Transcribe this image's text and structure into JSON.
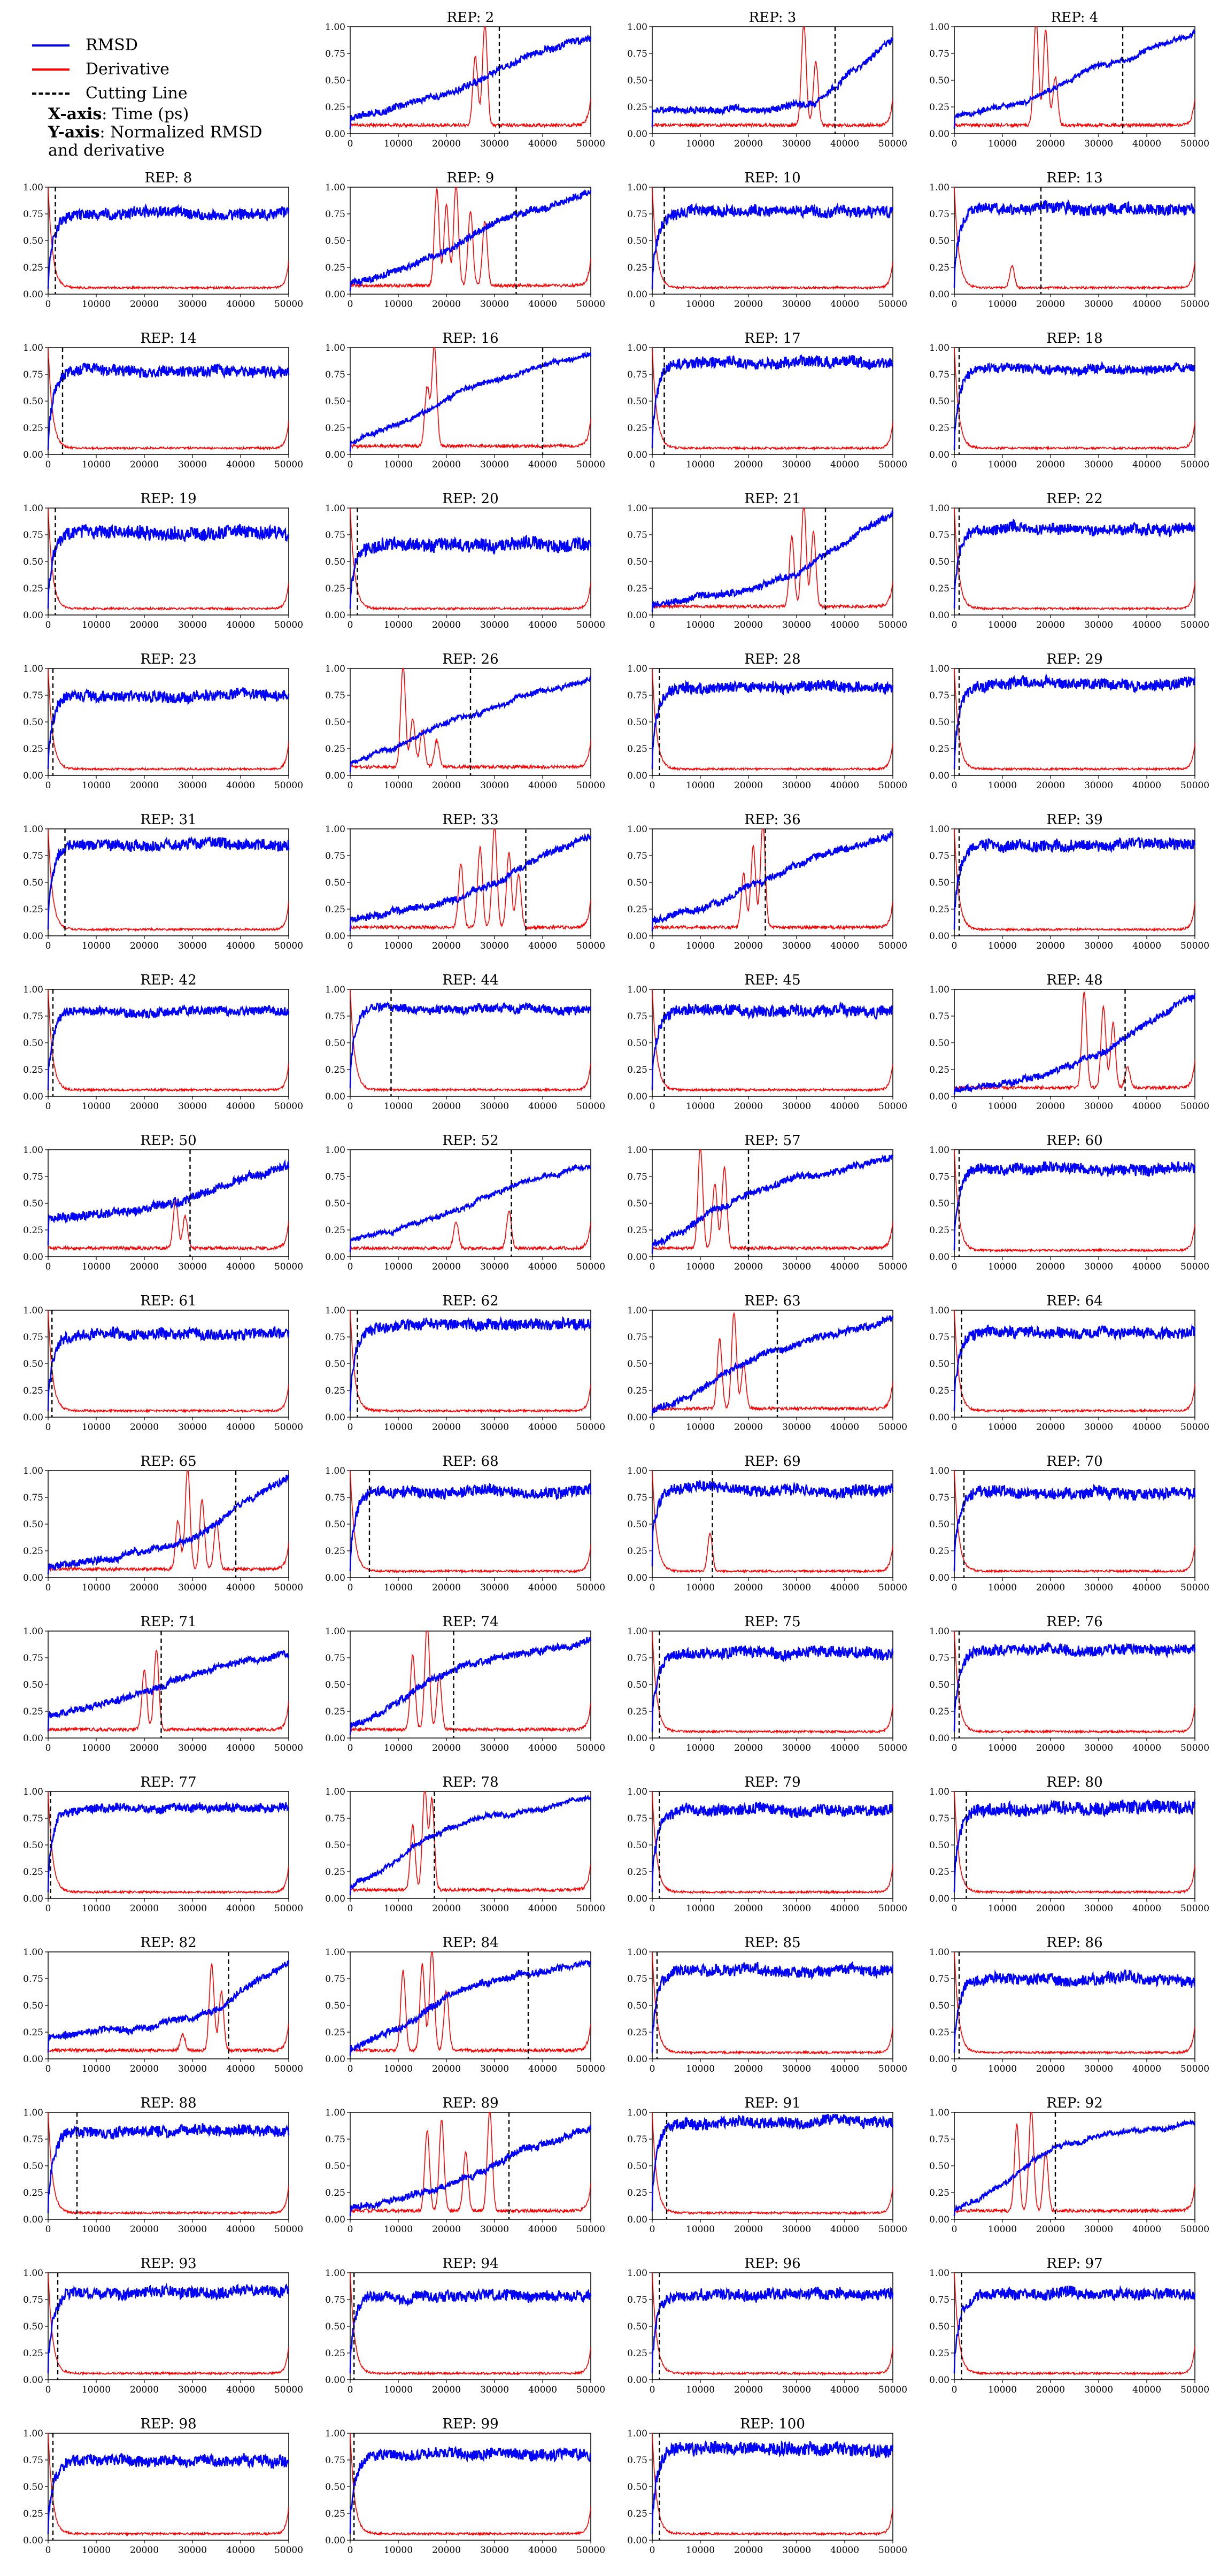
{
  "legend": {
    "rmsd_label": "RMSD",
    "derivative_label": "Derivative",
    "cutting_label": "Cutting Line",
    "xaxis_key": "X-axis",
    "xaxis_text": ": Time (ps)",
    "yaxis_key": "Y-axis",
    "yaxis_text": ": Normalized RMSD",
    "yaxis_text2": "and derivative"
  },
  "colors": {
    "rmsd": "#0000ff",
    "derivative": "#ff0000",
    "cutting": "#000000"
  },
  "chart_data": {
    "type": "line",
    "title_prefix": "REP: ",
    "xlim": [
      0,
      50000
    ],
    "ylim": [
      0,
      1.0
    ],
    "xticks": [
      0,
      10000,
      20000,
      30000,
      40000,
      50000
    ],
    "yticks": [
      "0.00",
      "0.25",
      "0.50",
      "0.75",
      "1.00"
    ],
    "series_names": [
      "RMSD",
      "Derivative",
      "Cutting Line"
    ],
    "panels": [
      {
        "rep": 2,
        "cut": 31000,
        "shape": "sig",
        "start": 0.15,
        "mid": 0.55,
        "end": 0.92,
        "trans": 25000,
        "noise": 0.03,
        "peaks": [
          [
            26000,
            0.65
          ],
          [
            28000,
            0.95
          ]
        ]
      },
      {
        "rep": 3,
        "cut": 38000,
        "shape": "sig",
        "start": 0.2,
        "mid": 0.3,
        "end": 0.9,
        "trans": 33000,
        "noise": 0.03,
        "peaks": [
          [
            31500,
            0.95
          ],
          [
            34000,
            0.6
          ]
        ]
      },
      {
        "rep": 4,
        "cut": 35000,
        "shape": "sig",
        "start": 0.15,
        "mid": 0.45,
        "end": 0.95,
        "trans": 19000,
        "noise": 0.02,
        "peaks": [
          [
            17000,
            0.98
          ],
          [
            19000,
            0.9
          ],
          [
            21000,
            0.45
          ]
        ]
      },
      {
        "rep": 8,
        "cut": 1500,
        "shape": "fast",
        "start": 0.15,
        "end": 0.75,
        "noise": 0.05
      },
      {
        "rep": 9,
        "cut": 34500,
        "shape": "sig",
        "start": 0.1,
        "mid": 0.55,
        "end": 0.95,
        "trans": 22000,
        "noise": 0.03,
        "peaks": [
          [
            18000,
            0.9
          ],
          [
            20000,
            0.75
          ],
          [
            22000,
            0.95
          ],
          [
            25000,
            0.7
          ],
          [
            28000,
            0.6
          ]
        ]
      },
      {
        "rep": 10,
        "cut": 2500,
        "shape": "fast",
        "start": 0.15,
        "end": 0.78,
        "noise": 0.05
      },
      {
        "rep": 13,
        "cut": 18000,
        "shape": "fast",
        "start": 0.2,
        "end": 0.8,
        "noise": 0.05,
        "peaks": [
          [
            12000,
            0.2
          ]
        ]
      },
      {
        "rep": 14,
        "cut": 3000,
        "shape": "fast",
        "start": 0.15,
        "end": 0.78,
        "noise": 0.05
      },
      {
        "rep": 16,
        "cut": 40000,
        "shape": "sig",
        "start": 0.1,
        "mid": 0.55,
        "end": 0.93,
        "trans": 18000,
        "noise": 0.02,
        "peaks": [
          [
            16000,
            0.55
          ],
          [
            17500,
            0.95
          ]
        ]
      },
      {
        "rep": 17,
        "cut": 2500,
        "shape": "fast",
        "start": 0.2,
        "end": 0.85,
        "noise": 0.05
      },
      {
        "rep": 18,
        "cut": 1000,
        "shape": "fast",
        "start": 0.15,
        "end": 0.8,
        "noise": 0.04
      },
      {
        "rep": 19,
        "cut": 1500,
        "shape": "fast",
        "start": 0.2,
        "end": 0.78,
        "noise": 0.06
      },
      {
        "rep": 20,
        "cut": 1500,
        "shape": "fast",
        "start": 0.2,
        "end": 0.65,
        "noise": 0.06
      },
      {
        "rep": 21,
        "cut": 36000,
        "shape": "sig",
        "start": 0.1,
        "mid": 0.45,
        "end": 0.93,
        "trans": 30000,
        "noise": 0.03,
        "peaks": [
          [
            29000,
            0.65
          ],
          [
            31500,
            0.95
          ],
          [
            33500,
            0.7
          ]
        ]
      },
      {
        "rep": 22,
        "cut": 1000,
        "shape": "fast",
        "start": 0.2,
        "end": 0.8,
        "noise": 0.05
      },
      {
        "rep": 23,
        "cut": 1000,
        "shape": "fast",
        "start": 0.2,
        "end": 0.75,
        "noise": 0.05
      },
      {
        "rep": 26,
        "cut": 25000,
        "shape": "sig",
        "start": 0.1,
        "mid": 0.45,
        "end": 0.9,
        "trans": 14000,
        "noise": 0.02,
        "peaks": [
          [
            11000,
            0.95
          ],
          [
            13000,
            0.45
          ],
          [
            15000,
            0.35
          ],
          [
            18000,
            0.25
          ]
        ]
      },
      {
        "rep": 28,
        "cut": 1500,
        "shape": "fast",
        "start": 0.2,
        "end": 0.82,
        "noise": 0.05
      },
      {
        "rep": 29,
        "cut": 1000,
        "shape": "fast",
        "start": 0.2,
        "end": 0.85,
        "noise": 0.05
      },
      {
        "rep": 31,
        "cut": 3500,
        "shape": "fast",
        "start": 0.2,
        "end": 0.85,
        "noise": 0.05
      },
      {
        "rep": 33,
        "cut": 36500,
        "shape": "sig",
        "start": 0.15,
        "mid": 0.55,
        "end": 0.95,
        "trans": 29000,
        "noise": 0.03,
        "peaks": [
          [
            23000,
            0.6
          ],
          [
            27000,
            0.75
          ],
          [
            30000,
            0.95
          ],
          [
            33000,
            0.7
          ],
          [
            35000,
            0.5
          ]
        ]
      },
      {
        "rep": 36,
        "cut": 23500,
        "shape": "sig",
        "start": 0.15,
        "mid": 0.55,
        "end": 0.95,
        "trans": 21000,
        "noise": 0.03,
        "peaks": [
          [
            19000,
            0.5
          ],
          [
            21000,
            0.75
          ],
          [
            23000,
            0.98
          ]
        ]
      },
      {
        "rep": 39,
        "cut": 1000,
        "shape": "fast",
        "start": 0.2,
        "end": 0.85,
        "noise": 0.05
      },
      {
        "rep": 42,
        "cut": 1000,
        "shape": "fast",
        "start": 0.2,
        "end": 0.8,
        "noise": 0.04
      },
      {
        "rep": 44,
        "cut": 8500,
        "shape": "fast",
        "start": 0.25,
        "end": 0.82,
        "noise": 0.04
      },
      {
        "rep": 45,
        "cut": 2500,
        "shape": "fast",
        "start": 0.2,
        "end": 0.8,
        "noise": 0.05
      },
      {
        "rep": 48,
        "cut": 35500,
        "shape": "sig",
        "start": 0.05,
        "mid": 0.45,
        "end": 0.93,
        "trans": 29000,
        "noise": 0.03,
        "peaks": [
          [
            27000,
            0.9
          ],
          [
            31000,
            0.75
          ],
          [
            33000,
            0.6
          ],
          [
            36000,
            0.2
          ]
        ]
      },
      {
        "rep": 50,
        "cut": 29500,
        "shape": "sig",
        "start": 0.35,
        "mid": 0.55,
        "end": 0.85,
        "trans": 27000,
        "noise": 0.04,
        "peaks": [
          [
            26500,
            0.45
          ],
          [
            28500,
            0.3
          ]
        ]
      },
      {
        "rep": 52,
        "cut": 33500,
        "shape": "sig",
        "start": 0.15,
        "mid": 0.55,
        "end": 0.85,
        "trans": 24000,
        "noise": 0.02,
        "peaks": [
          [
            33000,
            0.35
          ],
          [
            22000,
            0.25
          ]
        ]
      },
      {
        "rep": 57,
        "cut": 20000,
        "shape": "sig",
        "start": 0.1,
        "mid": 0.55,
        "end": 0.93,
        "trans": 14000,
        "noise": 0.03,
        "peaks": [
          [
            10000,
            0.95
          ],
          [
            13000,
            0.6
          ],
          [
            15000,
            0.75
          ]
        ]
      },
      {
        "rep": 60,
        "cut": 1000,
        "shape": "fast",
        "start": 0.2,
        "end": 0.82,
        "noise": 0.05
      },
      {
        "rep": 61,
        "cut": 800,
        "shape": "fast",
        "start": 0.2,
        "end": 0.78,
        "noise": 0.05
      },
      {
        "rep": 62,
        "cut": 1500,
        "shape": "fast",
        "start": 0.2,
        "end": 0.85,
        "noise": 0.05
      },
      {
        "rep": 63,
        "cut": 26000,
        "shape": "sig",
        "start": 0.05,
        "mid": 0.55,
        "end": 0.9,
        "trans": 17000,
        "noise": 0.03,
        "peaks": [
          [
            14000,
            0.65
          ],
          [
            17000,
            0.9
          ],
          [
            19000,
            0.4
          ]
        ]
      },
      {
        "rep": 64,
        "cut": 1500,
        "shape": "fast",
        "start": 0.2,
        "end": 0.8,
        "noise": 0.05
      },
      {
        "rep": 65,
        "cut": 39000,
        "shape": "sig",
        "start": 0.1,
        "mid": 0.45,
        "end": 0.93,
        "trans": 31000,
        "noise": 0.03,
        "peaks": [
          [
            27000,
            0.45
          ],
          [
            29000,
            0.95
          ],
          [
            32000,
            0.65
          ],
          [
            35000,
            0.45
          ]
        ]
      },
      {
        "rep": 68,
        "cut": 4000,
        "shape": "fast",
        "start": 0.2,
        "end": 0.8,
        "noise": 0.05
      },
      {
        "rep": 69,
        "cut": 12500,
        "shape": "fast",
        "start": 0.35,
        "end": 0.82,
        "noise": 0.05,
        "peaks": [
          [
            12000,
            0.35
          ]
        ]
      },
      {
        "rep": 70,
        "cut": 2000,
        "shape": "fast",
        "start": 0.2,
        "end": 0.8,
        "noise": 0.05
      },
      {
        "rep": 71,
        "cut": 23500,
        "shape": "sig",
        "start": 0.2,
        "mid": 0.55,
        "end": 0.8,
        "trans": 22500,
        "noise": 0.03,
        "peaks": [
          [
            20000,
            0.55
          ],
          [
            22500,
            0.75
          ]
        ]
      },
      {
        "rep": 74,
        "cut": 21500,
        "shape": "sig",
        "start": 0.1,
        "mid": 0.6,
        "end": 0.92,
        "trans": 15000,
        "noise": 0.03,
        "peaks": [
          [
            13000,
            0.7
          ],
          [
            16000,
            0.98
          ],
          [
            18500,
            0.5
          ]
        ]
      },
      {
        "rep": 75,
        "cut": 1500,
        "shape": "fast",
        "start": 0.2,
        "end": 0.8,
        "noise": 0.05
      },
      {
        "rep": 76,
        "cut": 1000,
        "shape": "fast",
        "start": 0.2,
        "end": 0.82,
        "noise": 0.05
      },
      {
        "rep": 77,
        "cut": 500,
        "shape": "fast",
        "start": 0.2,
        "end": 0.85,
        "noise": 0.04
      },
      {
        "rep": 78,
        "cut": 17500,
        "shape": "sig",
        "start": 0.1,
        "mid": 0.65,
        "end": 0.93,
        "trans": 15000,
        "noise": 0.02,
        "peaks": [
          [
            13000,
            0.6
          ],
          [
            15500,
            0.95
          ],
          [
            17000,
            0.85
          ]
        ]
      },
      {
        "rep": 79,
        "cut": 1500,
        "shape": "fast",
        "start": 0.2,
        "end": 0.82,
        "noise": 0.05
      },
      {
        "rep": 80,
        "cut": 2500,
        "shape": "fast",
        "start": 0.2,
        "end": 0.85,
        "noise": 0.06
      },
      {
        "rep": 82,
        "cut": 37500,
        "shape": "sig",
        "start": 0.2,
        "mid": 0.5,
        "end": 0.9,
        "trans": 34000,
        "noise": 0.03,
        "peaks": [
          [
            34000,
            0.8
          ],
          [
            36000,
            0.55
          ],
          [
            28000,
            0.15
          ]
        ]
      },
      {
        "rep": 84,
        "cut": 37000,
        "shape": "sig",
        "start": 0.1,
        "mid": 0.65,
        "end": 0.9,
        "trans": 19000,
        "noise": 0.03,
        "peaks": [
          [
            11000,
            0.75
          ],
          [
            15000,
            0.8
          ],
          [
            17000,
            0.95
          ],
          [
            20000,
            0.55
          ]
        ]
      },
      {
        "rep": 85,
        "cut": 1000,
        "shape": "fast",
        "start": 0.2,
        "end": 0.82,
        "noise": 0.05
      },
      {
        "rep": 86,
        "cut": 1000,
        "shape": "fast",
        "start": 0.2,
        "end": 0.75,
        "noise": 0.05
      },
      {
        "rep": 88,
        "cut": 6000,
        "shape": "fast",
        "start": 0.2,
        "end": 0.82,
        "noise": 0.05
      },
      {
        "rep": 89,
        "cut": 33000,
        "shape": "sig",
        "start": 0.1,
        "mid": 0.55,
        "end": 0.85,
        "trans": 28000,
        "noise": 0.03,
        "peaks": [
          [
            16000,
            0.75
          ],
          [
            19000,
            0.85
          ],
          [
            24000,
            0.55
          ],
          [
            29000,
            0.95
          ]
        ]
      },
      {
        "rep": 91,
        "cut": 3000,
        "shape": "fast",
        "start": 0.25,
        "end": 0.9,
        "noise": 0.05
      },
      {
        "rep": 92,
        "cut": 21000,
        "shape": "sig",
        "start": 0.1,
        "mid": 0.7,
        "end": 0.9,
        "trans": 17000,
        "noise": 0.02,
        "peaks": [
          [
            13000,
            0.8
          ],
          [
            16000,
            0.95
          ],
          [
            19000,
            0.55
          ]
        ]
      },
      {
        "rep": 93,
        "cut": 2000,
        "shape": "fast",
        "start": 0.2,
        "end": 0.82,
        "noise": 0.05
      },
      {
        "rep": 94,
        "cut": 800,
        "shape": "fast",
        "start": 0.2,
        "end": 0.78,
        "noise": 0.05
      },
      {
        "rep": 96,
        "cut": 1500,
        "shape": "fast",
        "start": 0.2,
        "end": 0.8,
        "noise": 0.05
      },
      {
        "rep": 97,
        "cut": 1500,
        "shape": "fast",
        "start": 0.2,
        "end": 0.8,
        "noise": 0.05
      },
      {
        "rep": 98,
        "cut": 1000,
        "shape": "fast",
        "start": 0.2,
        "end": 0.75,
        "noise": 0.05
      },
      {
        "rep": 99,
        "cut": 800,
        "shape": "fast",
        "start": 0.2,
        "end": 0.8,
        "noise": 0.05
      },
      {
        "rep": 100,
        "cut": 1500,
        "shape": "fast",
        "start": 0.2,
        "end": 0.85,
        "noise": 0.06
      }
    ]
  }
}
